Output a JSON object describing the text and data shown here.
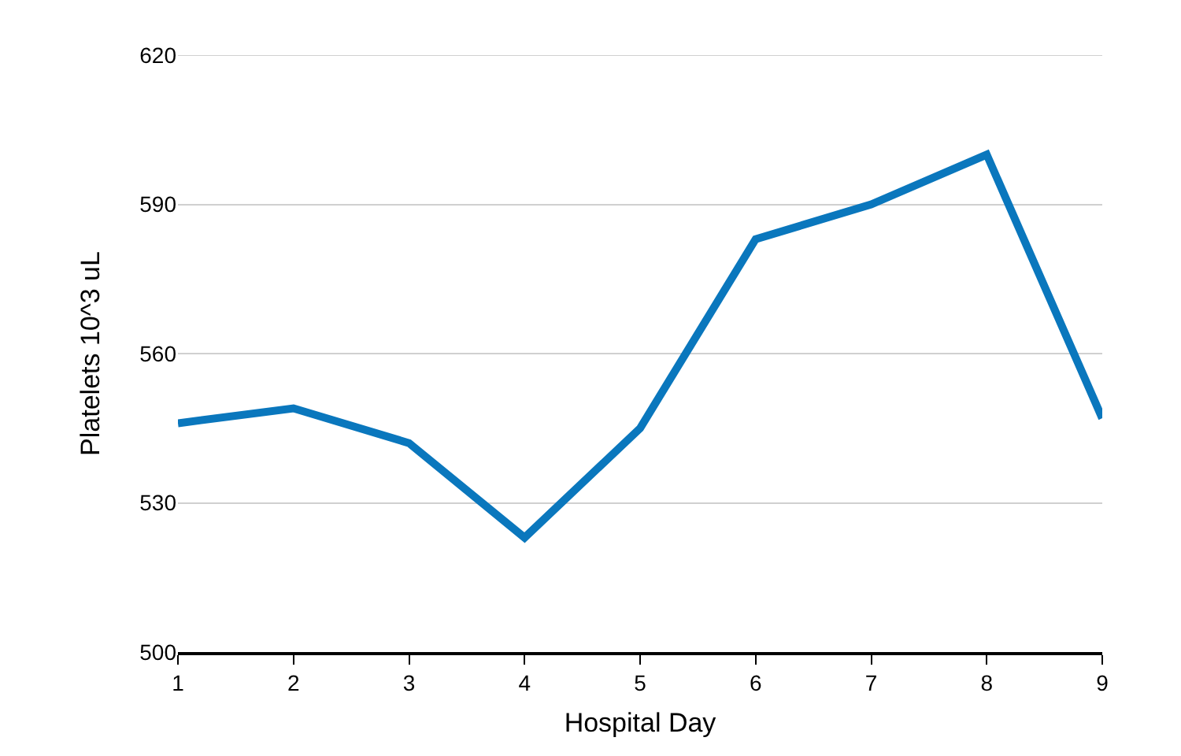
{
  "chart_data": {
    "type": "line",
    "xlabel": "Hospital Day",
    "ylabel": "Platelets 10^3 uL",
    "x": [
      1,
      2,
      3,
      4,
      5,
      6,
      7,
      8,
      9
    ],
    "series": [
      {
        "color": "#0a77bd",
        "values": [
          546,
          549,
          542,
          523,
          545,
          583,
          590,
          600,
          547
        ]
      }
    ],
    "xlim": [
      1,
      9
    ],
    "xticks": [
      1,
      2,
      3,
      4,
      5,
      6,
      7,
      8,
      9
    ],
    "ylim": [
      500,
      620
    ],
    "yticks": [
      500,
      530,
      560,
      590,
      620
    ],
    "grid": "y",
    "marker": "none",
    "line_style": "solid"
  }
}
